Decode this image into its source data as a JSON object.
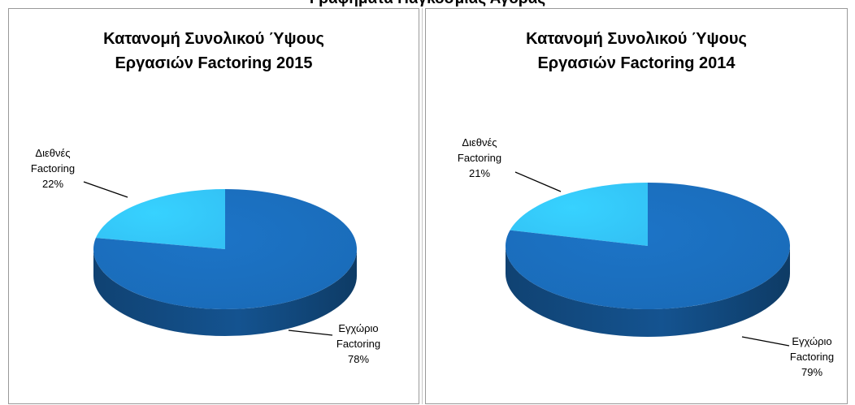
{
  "header": {
    "title": "Γραφήματα Παγκόσμιας Αγοράς"
  },
  "chart_data": [
    {
      "type": "pie",
      "title_lines": [
        "Κατανομή Συνολικού Ύψους",
        "Εργασιών Factoring 2015"
      ],
      "slices": [
        {
          "label_lines": [
            "Διεθνές",
            "Factoring"
          ],
          "value": 22,
          "value_label": "22%",
          "color": "#33c2f5"
        },
        {
          "label_lines": [
            "Εγχώριο",
            "Factoring"
          ],
          "value": 78,
          "value_label": "78%",
          "color": "#1a6bb8"
        }
      ]
    },
    {
      "type": "pie",
      "title_lines": [
        "Κατανομή Συνολικού Ύψους",
        "Εργασιών Factoring 2014"
      ],
      "slices": [
        {
          "label_lines": [
            "Διεθνές",
            "Factoring"
          ],
          "value": 21,
          "value_label": "21%",
          "color": "#33c2f5"
        },
        {
          "label_lines": [
            "Εγχώριο",
            "Factoring"
          ],
          "value": 79,
          "value_label": "79%",
          "color": "#1a6bb8"
        }
      ]
    }
  ]
}
